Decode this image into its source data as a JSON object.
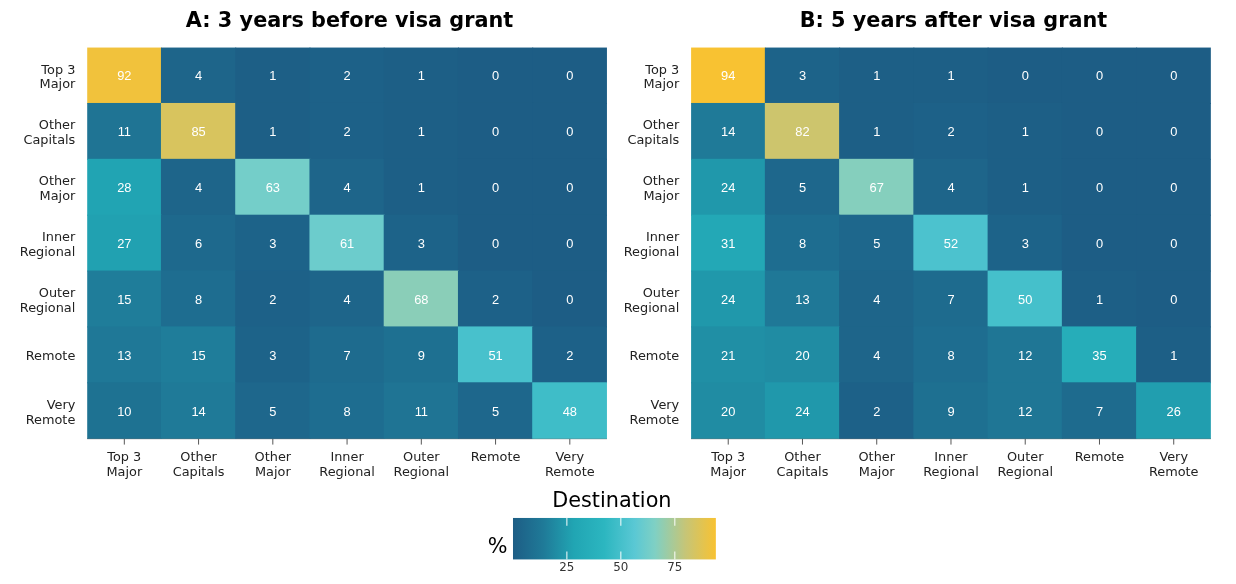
{
  "chart_data": [
    {
      "type": "heatmap",
      "title": "A: 3 years before visa grant",
      "xlabel": "Destination",
      "clabel": "%",
      "clim": [
        0,
        94
      ],
      "cticks": [
        25,
        50,
        75
      ],
      "data_labels": true,
      "categories": [
        "Top 3 Major",
        "Other Capitals",
        "Other Major",
        "Inner Regional",
        "Outer Regional",
        "Remote",
        "Very Remote"
      ],
      "y_categories": [
        "Top 3 Major",
        "Other Capitals",
        "Other Major",
        "Inner Regional",
        "Outer Regional",
        "Remote",
        "Very Remote"
      ],
      "cells": [
        [
          92,
          4,
          1,
          2,
          1,
          0,
          0
        ],
        [
          11,
          85,
          1,
          2,
          1,
          0,
          0
        ],
        [
          28,
          4,
          63,
          4,
          1,
          0,
          0
        ],
        [
          27,
          6,
          3,
          61,
          3,
          0,
          0
        ],
        [
          15,
          8,
          2,
          4,
          68,
          2,
          0
        ],
        [
          13,
          15,
          3,
          7,
          9,
          51,
          2
        ],
        [
          10,
          14,
          5,
          8,
          11,
          5,
          48
        ]
      ]
    },
    {
      "type": "heatmap",
      "title": "B: 5 years after visa grant",
      "data_labels": true,
      "categories": [
        "Top 3 Major",
        "Other Capitals",
        "Other Major",
        "Inner Regional",
        "Outer Regional",
        "Remote",
        "Very Remote"
      ],
      "y_categories": [
        "Top 3 Major",
        "Other Capitals",
        "Other Major",
        "Inner Regional",
        "Outer Regional",
        "Remote",
        "Very Remote"
      ],
      "cells": [
        [
          94,
          3,
          1,
          1,
          0,
          0,
          0
        ],
        [
          14,
          82,
          1,
          2,
          1,
          0,
          0
        ],
        [
          24,
          5,
          67,
          4,
          1,
          0,
          0
        ],
        [
          31,
          8,
          5,
          52,
          3,
          0,
          0
        ],
        [
          24,
          13,
          4,
          7,
          50,
          1,
          0
        ],
        [
          21,
          20,
          4,
          8,
          12,
          35,
          1
        ],
        [
          20,
          24,
          2,
          9,
          12,
          7,
          26
        ]
      ]
    }
  ]
}
